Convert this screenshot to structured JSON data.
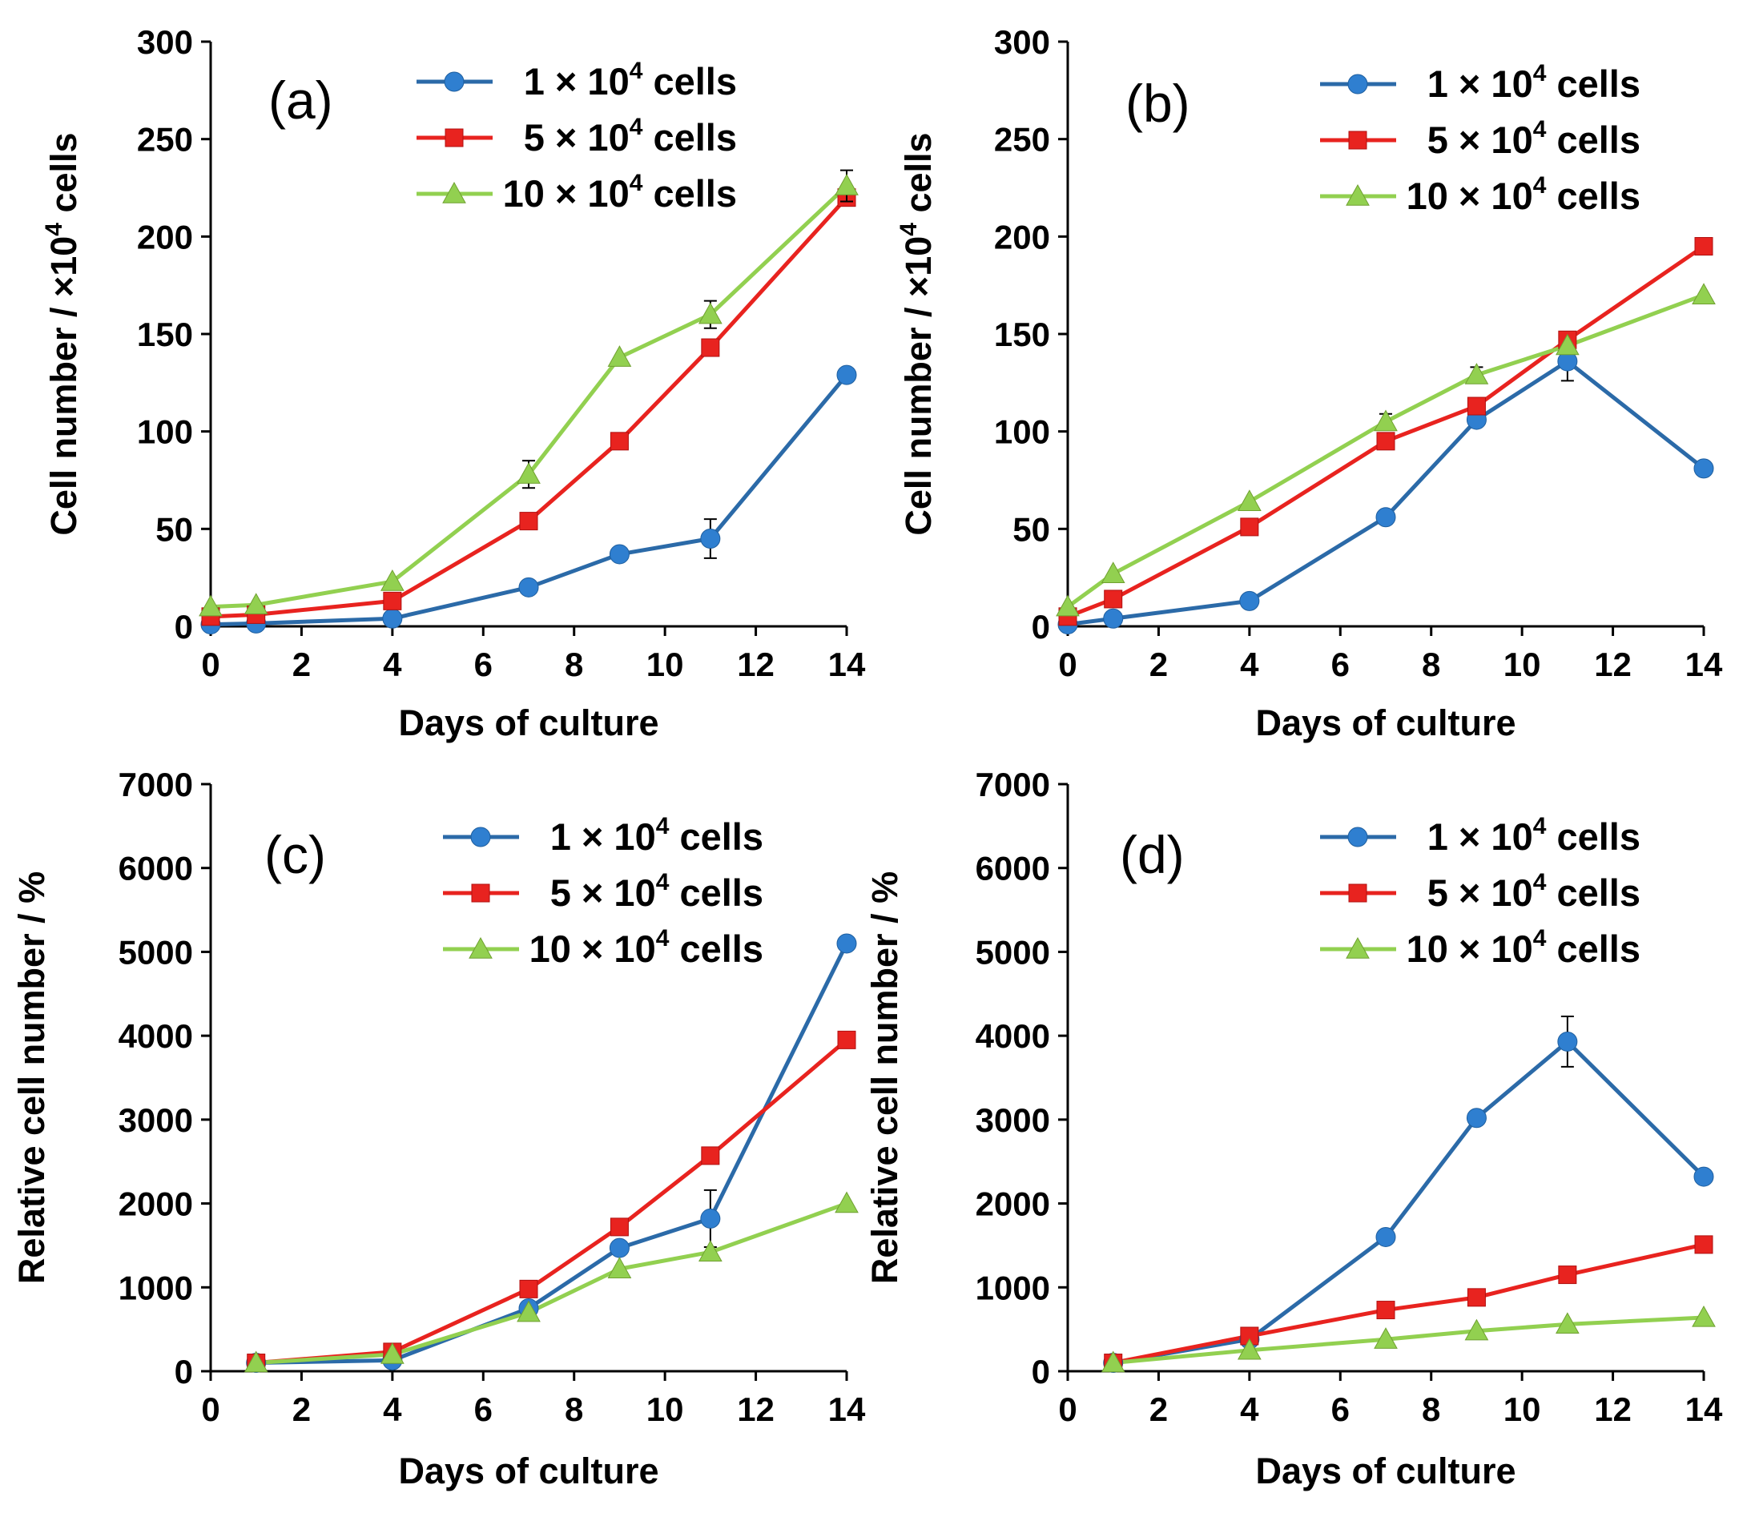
{
  "colors": {
    "series1": "#2f7fd0",
    "series1_line": "#2b6aa8",
    "series2": "#e8231f",
    "series3": "#92d050",
    "axis": "#000000"
  },
  "chart_data": [
    {
      "type": "line",
      "panel_label": "(a)",
      "xlabel": "Days of culture",
      "ylabel": "Cell number / ×10⁴ cells",
      "xlim": [
        0,
        14
      ],
      "ylim": [
        0,
        300
      ],
      "xticks": [
        0,
        2,
        4,
        6,
        8,
        10,
        12,
        14
      ],
      "yticks": [
        0,
        50,
        100,
        150,
        200,
        250,
        300
      ],
      "series": [
        {
          "name": "1 × 10⁴ cells",
          "marker": "circle",
          "x": [
            0,
            1,
            4,
            7,
            9,
            11,
            14
          ],
          "values": [
            1,
            1.5,
            4,
            20,
            37,
            45,
            129
          ],
          "errors": [
            0,
            0,
            0,
            0,
            0,
            10,
            0
          ]
        },
        {
          "name": "5 × 10⁴ cells",
          "marker": "square",
          "x": [
            0,
            1,
            4,
            7,
            9,
            11,
            14
          ],
          "values": [
            5,
            6,
            13,
            54,
            95,
            143,
            220
          ],
          "errors": [
            0,
            0,
            0,
            0,
            0,
            0,
            0
          ]
        },
        {
          "name": "10 × 10⁴ cells",
          "marker": "triangle",
          "x": [
            0,
            1,
            4,
            7,
            9,
            11,
            14
          ],
          "values": [
            10,
            11,
            23,
            78,
            138,
            160,
            226
          ],
          "errors": [
            0,
            0,
            0,
            7,
            0,
            7,
            8
          ]
        }
      ]
    },
    {
      "type": "line",
      "panel_label": "(b)",
      "xlabel": "Days of culture",
      "ylabel": "Cell number / ×10⁴ cells",
      "xlim": [
        0,
        14
      ],
      "ylim": [
        0,
        300
      ],
      "xticks": [
        0,
        2,
        4,
        6,
        8,
        10,
        12,
        14
      ],
      "yticks": [
        0,
        50,
        100,
        150,
        200,
        250,
        300
      ],
      "series": [
        {
          "name": "1 × 10⁴ cells",
          "marker": "circle",
          "x": [
            0,
            1,
            4,
            7,
            9,
            11,
            14
          ],
          "values": [
            1,
            4,
            13,
            56,
            106,
            136,
            81
          ],
          "errors": [
            0,
            0,
            0,
            0,
            0,
            10,
            0
          ]
        },
        {
          "name": "5 × 10⁴ cells",
          "marker": "square",
          "x": [
            0,
            1,
            4,
            7,
            9,
            11,
            14
          ],
          "values": [
            5,
            14,
            51,
            95,
            113,
            147,
            195
          ],
          "errors": [
            0,
            0,
            0,
            0,
            0,
            0,
            0
          ]
        },
        {
          "name": "10 × 10⁴ cells",
          "marker": "triangle",
          "x": [
            0,
            1,
            4,
            7,
            9,
            11,
            14
          ],
          "values": [
            10,
            27,
            64,
            105,
            129,
            144,
            170
          ],
          "errors": [
            0,
            0,
            0,
            4,
            4,
            0,
            0
          ]
        }
      ]
    },
    {
      "type": "line",
      "panel_label": "(c)",
      "xlabel": "Days of culture",
      "ylabel": "Relative cell number / %",
      "xlim": [
        0,
        14
      ],
      "ylim": [
        0,
        7000
      ],
      "xticks": [
        0,
        2,
        4,
        6,
        8,
        10,
        12,
        14
      ],
      "yticks": [
        0,
        1000,
        2000,
        3000,
        4000,
        5000,
        6000,
        7000
      ],
      "series": [
        {
          "name": "1 × 10⁴ cells",
          "marker": "circle",
          "x": [
            1,
            4,
            7,
            9,
            11,
            14
          ],
          "values": [
            100,
            130,
            750,
            1470,
            1820,
            5100
          ],
          "errors": [
            0,
            0,
            0,
            0,
            340,
            0
          ]
        },
        {
          "name": "5 × 10⁴ cells",
          "marker": "square",
          "x": [
            1,
            4,
            7,
            9,
            11,
            14
          ],
          "values": [
            100,
            230,
            980,
            1720,
            2570,
            3950
          ],
          "errors": [
            0,
            0,
            0,
            0,
            0,
            0
          ]
        },
        {
          "name": "10 × 10⁴ cells",
          "marker": "triangle",
          "x": [
            1,
            4,
            7,
            9,
            11,
            14
          ],
          "values": [
            100,
            200,
            700,
            1220,
            1420,
            2000
          ],
          "errors": [
            0,
            0,
            0,
            0,
            0,
            0
          ]
        }
      ]
    },
    {
      "type": "line",
      "panel_label": "(d)",
      "xlabel": "Days of culture",
      "ylabel": "Relative cell number / %",
      "xlim": [
        0,
        14
      ],
      "ylim": [
        0,
        7000
      ],
      "xticks": [
        0,
        2,
        4,
        6,
        8,
        10,
        12,
        14
      ],
      "yticks": [
        0,
        1000,
        2000,
        3000,
        4000,
        5000,
        6000,
        7000
      ],
      "series": [
        {
          "name": "1 × 10⁴ cells",
          "marker": "circle",
          "x": [
            1,
            4,
            7,
            9,
            11,
            14
          ],
          "values": [
            100,
            380,
            1600,
            3020,
            3930,
            2320
          ],
          "errors": [
            0,
            0,
            0,
            0,
            300,
            0
          ]
        },
        {
          "name": "5 × 10⁴ cells",
          "marker": "square",
          "x": [
            1,
            4,
            7,
            9,
            11,
            14
          ],
          "values": [
            100,
            420,
            730,
            880,
            1150,
            1510
          ],
          "errors": [
            0,
            0,
            0,
            0,
            0,
            0
          ]
        },
        {
          "name": "10 × 10⁴ cells",
          "marker": "triangle",
          "x": [
            1,
            4,
            7,
            9,
            11,
            14
          ],
          "values": [
            100,
            250,
            380,
            480,
            560,
            640
          ],
          "errors": [
            0,
            0,
            0,
            0,
            0,
            0
          ]
        }
      ]
    }
  ]
}
